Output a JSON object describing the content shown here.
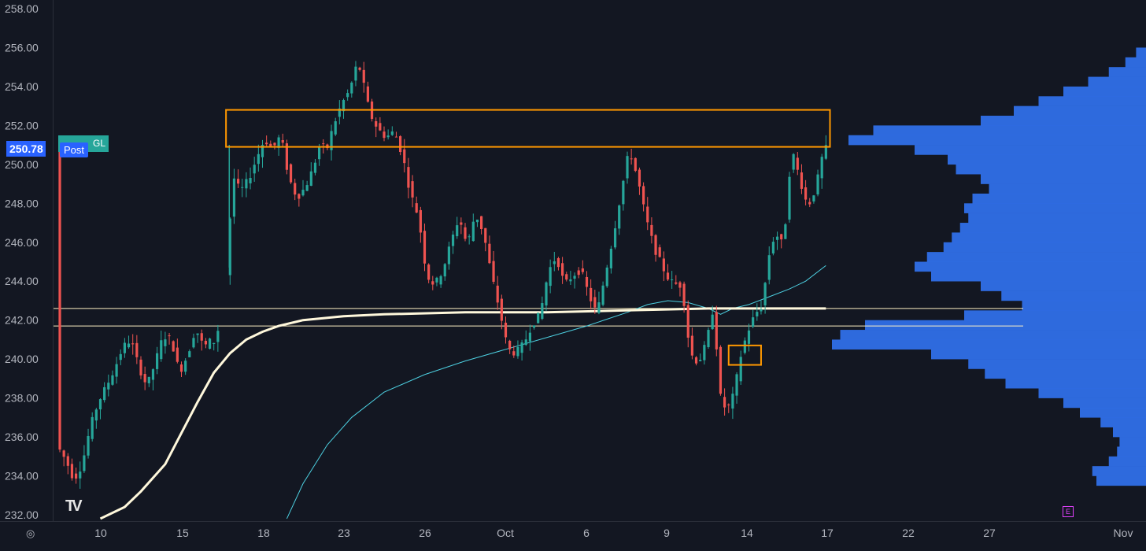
{
  "chart_data": {
    "type": "candlestick",
    "title": "",
    "ylim": [
      232,
      258
    ],
    "y_ticks": [
      "258.00",
      "256.00",
      "254.00",
      "252.00",
      "250.00",
      "248.00",
      "246.00",
      "244.00",
      "242.00",
      "240.00",
      "238.00",
      "236.00",
      "234.00",
      "232.00"
    ],
    "x_ticks": [
      "10",
      "15",
      "18",
      "23",
      "26",
      "Oct",
      "6",
      "9",
      "14",
      "17",
      "22",
      "27",
      "Nov"
    ],
    "price_label": "250.78",
    "session_label": "Post",
    "symbol_label": "GL",
    "earnings_marker": "E",
    "logo_text": "TV",
    "settings_icon": "gear-icon",
    "price_path": [
      [
        0,
        235.5
      ],
      [
        2,
        234.8
      ],
      [
        4,
        233.8
      ],
      [
        6,
        234.6
      ],
      [
        8,
        236.5
      ],
      [
        10,
        237.8
      ],
      [
        12,
        238.6
      ],
      [
        14,
        239.5
      ],
      [
        16,
        240.6
      ],
      [
        18,
        241.0
      ],
      [
        20,
        239.6
      ],
      [
        22,
        238.6
      ],
      [
        24,
        239.8
      ],
      [
        26,
        241.2
      ],
      [
        28,
        241.0
      ],
      [
        30,
        239.3
      ],
      [
        32,
        240.2
      ],
      [
        34,
        241.6
      ],
      [
        36,
        240.6
      ],
      [
        38,
        241.0
      ],
      [
        39,
        240.8
      ],
      [
        42,
        245.0
      ],
      [
        43,
        249.5
      ],
      [
        45,
        248.6
      ],
      [
        47,
        249.2
      ],
      [
        49,
        250.3
      ],
      [
        51,
        251.3
      ],
      [
        53,
        250.8
      ],
      [
        55,
        251.5
      ],
      [
        57,
        249.3
      ],
      [
        59,
        248.3
      ],
      [
        61,
        248.8
      ],
      [
        63,
        249.8
      ],
      [
        65,
        251.3
      ],
      [
        66,
        250.5
      ],
      [
        68,
        252.0
      ],
      [
        70,
        253.1
      ],
      [
        72,
        253.8
      ],
      [
        74,
        255.3
      ],
      [
        75,
        254.5
      ],
      [
        77,
        252.6
      ],
      [
        79,
        251.8
      ],
      [
        81,
        251.4
      ],
      [
        83,
        251.7
      ],
      [
        85,
        250.5
      ],
      [
        87,
        248.5
      ],
      [
        89,
        247.3
      ],
      [
        91,
        244.3
      ],
      [
        93,
        243.8
      ],
      [
        95,
        244.6
      ],
      [
        97,
        246.0
      ],
      [
        99,
        247.3
      ],
      [
        101,
        245.8
      ],
      [
        103,
        247.5
      ],
      [
        105,
        246.5
      ],
      [
        107,
        244.3
      ],
      [
        109,
        242.5
      ],
      [
        111,
        240.5
      ],
      [
        113,
        240.3
      ],
      [
        115,
        240.8
      ],
      [
        117,
        241.8
      ],
      [
        119,
        242.3
      ],
      [
        121,
        244.5
      ],
      [
        123,
        245.3
      ],
      [
        125,
        243.8
      ],
      [
        127,
        244.3
      ],
      [
        129,
        244.6
      ],
      [
        131,
        243.3
      ],
      [
        133,
        242.3
      ],
      [
        135,
        244.3
      ],
      [
        137,
        246.3
      ],
      [
        139,
        248.6
      ],
      [
        141,
        250.8
      ],
      [
        143,
        249.3
      ],
      [
        145,
        247.3
      ],
      [
        147,
        245.8
      ],
      [
        149,
        244.8
      ],
      [
        151,
        244.0
      ],
      [
        153,
        243.8
      ],
      [
        154,
        243.8
      ],
      [
        156,
        240.3
      ],
      [
        158,
        239.8
      ],
      [
        160,
        240.8
      ],
      [
        162,
        243.0
      ],
      [
        163,
        238.3
      ],
      [
        165,
        237.3
      ],
      [
        167,
        238.3
      ],
      [
        168,
        239.8
      ],
      [
        170,
        241.3
      ],
      [
        172,
        242.3
      ],
      [
        174,
        242.8
      ],
      [
        175,
        245.0
      ],
      [
        177,
        246.5
      ],
      [
        179,
        245.8
      ],
      [
        181,
        250.8
      ],
      [
        183,
        249.3
      ],
      [
        185,
        247.8
      ],
      [
        187,
        248.8
      ],
      [
        189,
        250.8
      ]
    ],
    "vwap_path": [
      [
        10,
        231.8
      ],
      [
        16,
        232.4
      ],
      [
        20,
        233.2
      ],
      [
        26,
        234.6
      ],
      [
        30,
        236.2
      ],
      [
        34,
        237.8
      ],
      [
        38,
        239.3
      ],
      [
        42,
        240.3
      ],
      [
        46,
        241.0
      ],
      [
        50,
        241.4
      ],
      [
        54,
        241.7
      ],
      [
        60,
        242.0
      ],
      [
        70,
        242.2
      ],
      [
        80,
        242.3
      ],
      [
        100,
        242.4
      ],
      [
        120,
        242.4
      ],
      [
        140,
        242.5
      ],
      [
        160,
        242.6
      ],
      [
        180,
        242.6
      ],
      [
        189,
        242.6
      ]
    ],
    "ma_path": [
      [
        56,
        231.8
      ],
      [
        60,
        233.6
      ],
      [
        66,
        235.6
      ],
      [
        72,
        237.0
      ],
      [
        80,
        238.3
      ],
      [
        90,
        239.2
      ],
      [
        100,
        239.9
      ],
      [
        110,
        240.5
      ],
      [
        120,
        241.1
      ],
      [
        130,
        241.7
      ],
      [
        140,
        242.4
      ],
      [
        145,
        242.8
      ],
      [
        150,
        243.0
      ],
      [
        155,
        242.9
      ],
      [
        160,
        242.6
      ],
      [
        163,
        242.3
      ],
      [
        166,
        242.6
      ],
      [
        170,
        242.8
      ],
      [
        175,
        243.2
      ],
      [
        180,
        243.6
      ],
      [
        184,
        244.0
      ],
      [
        189,
        244.8
      ]
    ],
    "horizontal_levels": [
      242.6,
      241.7
    ],
    "resistance_zone": {
      "x_from": 41,
      "x_to": 190,
      "y_low": 250.9,
      "y_high": 252.8
    },
    "support_zone": {
      "x_from": 165,
      "x_to": 173,
      "y_low": 239.7,
      "y_high": 240.7
    },
    "volume_profile": [
      [
        255.5,
        12
      ],
      [
        255.0,
        25
      ],
      [
        254.5,
        45
      ],
      [
        254.0,
        70
      ],
      [
        253.5,
        100
      ],
      [
        253.0,
        130
      ],
      [
        252.5,
        160
      ],
      [
        252.0,
        200
      ],
      [
        251.5,
        330
      ],
      [
        251.0,
        360
      ],
      [
        250.5,
        280
      ],
      [
        250.0,
        240
      ],
      [
        249.5,
        230
      ],
      [
        249.0,
        200
      ],
      [
        248.5,
        190
      ],
      [
        248.0,
        210
      ],
      [
        247.5,
        220
      ],
      [
        247.0,
        215
      ],
      [
        246.5,
        225
      ],
      [
        246.0,
        235
      ],
      [
        245.5,
        245
      ],
      [
        245.0,
        265
      ],
      [
        244.5,
        280
      ],
      [
        244.0,
        260
      ],
      [
        243.5,
        200
      ],
      [
        243.0,
        175
      ],
      [
        242.5,
        150
      ],
      [
        242.0,
        220
      ],
      [
        241.5,
        340
      ],
      [
        241.0,
        370
      ],
      [
        240.5,
        380
      ],
      [
        240.0,
        260
      ],
      [
        239.5,
        215
      ],
      [
        239.0,
        195
      ],
      [
        238.5,
        170
      ],
      [
        238.0,
        130
      ],
      [
        237.5,
        100
      ],
      [
        237.0,
        80
      ],
      [
        236.5,
        55
      ],
      [
        236.0,
        40
      ],
      [
        235.5,
        32
      ],
      [
        235.0,
        35
      ],
      [
        234.5,
        45
      ],
      [
        234.0,
        65
      ],
      [
        233.5,
        60
      ]
    ]
  }
}
